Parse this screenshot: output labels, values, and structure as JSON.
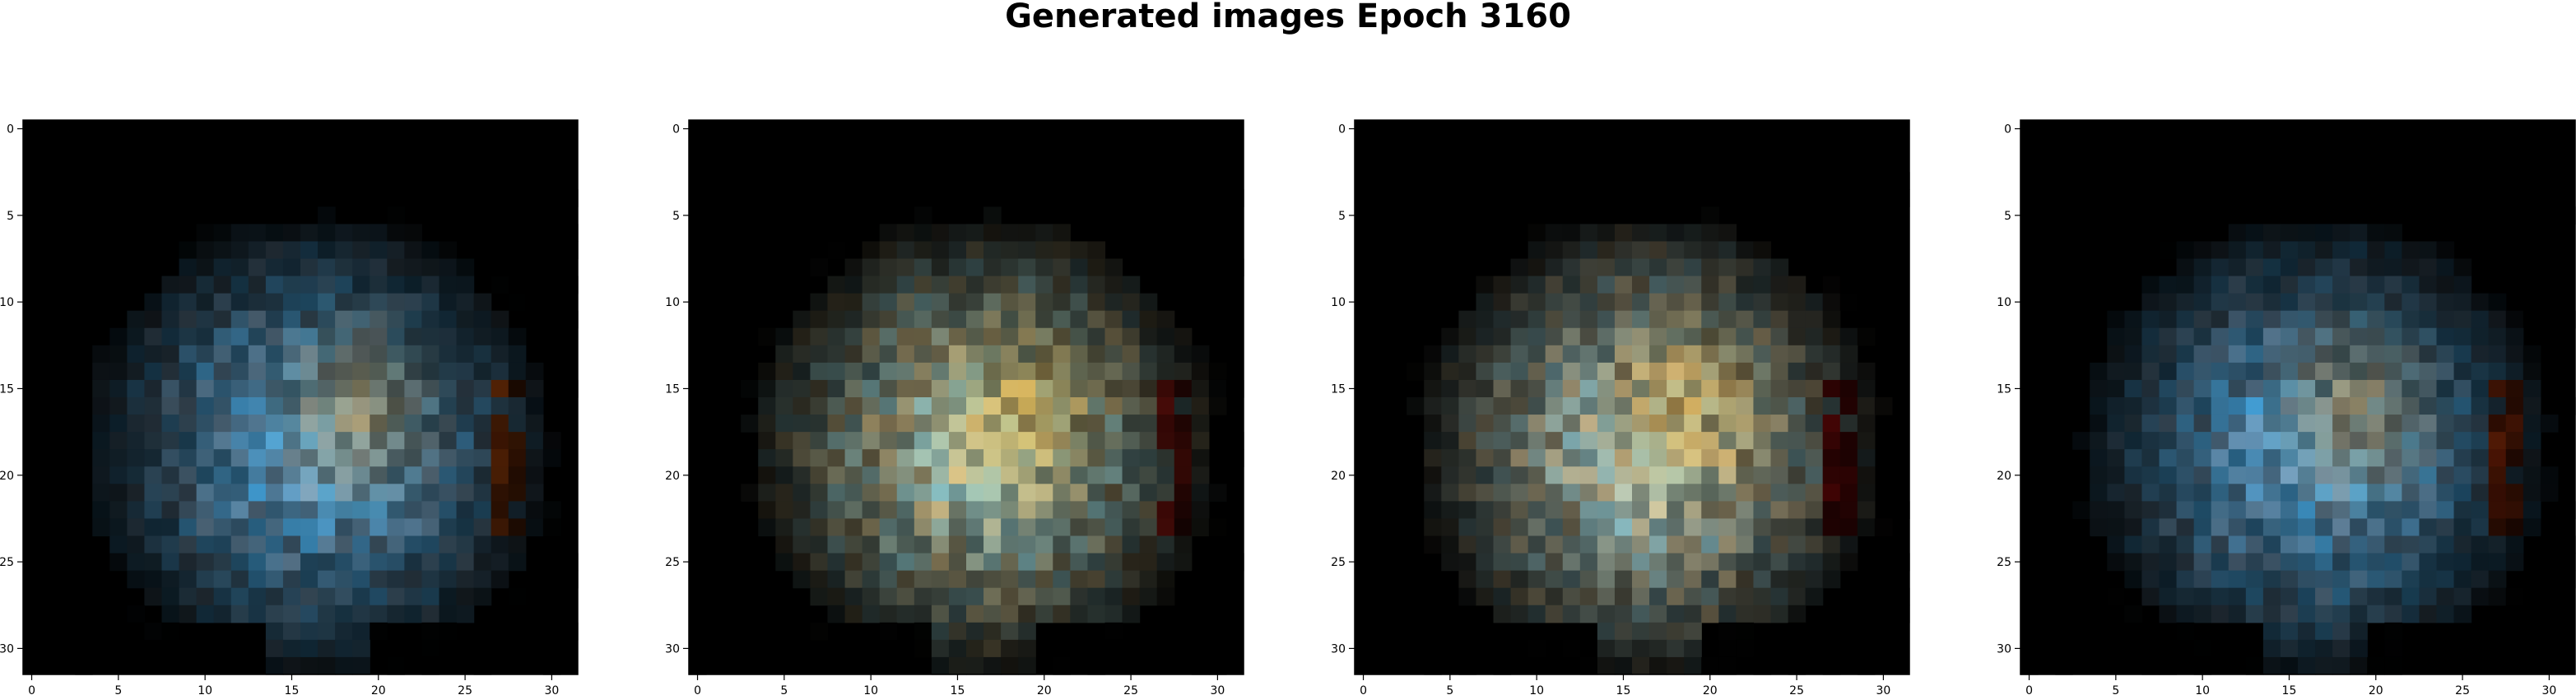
{
  "figure": {
    "title": "Generated images Epoch 3160"
  },
  "panels": [
    {
      "name": "generated-image-1",
      "x_ticks": [
        "0",
        "5",
        "10",
        "15",
        "20",
        "25",
        "30"
      ],
      "y_ticks": [
        "0",
        "5",
        "10",
        "15",
        "20",
        "25",
        "30"
      ],
      "palette": {
        "edge": "#ff6a10",
        "core": "#7fa6c4",
        "accent": "#2aa4ea",
        "warm": "#c9a15a"
      }
    },
    {
      "name": "generated-image-2",
      "x_ticks": [
        "0",
        "5",
        "10",
        "15",
        "20",
        "25",
        "30"
      ],
      "y_ticks": [
        "0",
        "5",
        "10",
        "15",
        "20",
        "25",
        "30"
      ],
      "palette": {
        "edge": "#e8261a",
        "core": "#d9c48c",
        "accent": "#6fcbe8",
        "warm": "#f0c050"
      }
    },
    {
      "name": "generated-image-3",
      "x_ticks": [
        "0",
        "5",
        "10",
        "15",
        "20",
        "25",
        "30"
      ],
      "y_ticks": [
        "0",
        "5",
        "10",
        "15",
        "20",
        "25",
        "30"
      ],
      "palette": {
        "edge": "#d01010",
        "core": "#dcc89a",
        "accent": "#7ad0ee",
        "warm": "#f0b848"
      }
    },
    {
      "name": "generated-image-4",
      "x_ticks": [
        "0",
        "5",
        "10",
        "15",
        "20",
        "25",
        "30"
      ],
      "y_ticks": [
        "0",
        "5",
        "10",
        "15",
        "20",
        "25",
        "30"
      ],
      "palette": {
        "edge": "#ff5010",
        "core": "#7aa2c2",
        "accent": "#2aa4ea",
        "warm": "#c09a58"
      }
    }
  ]
}
